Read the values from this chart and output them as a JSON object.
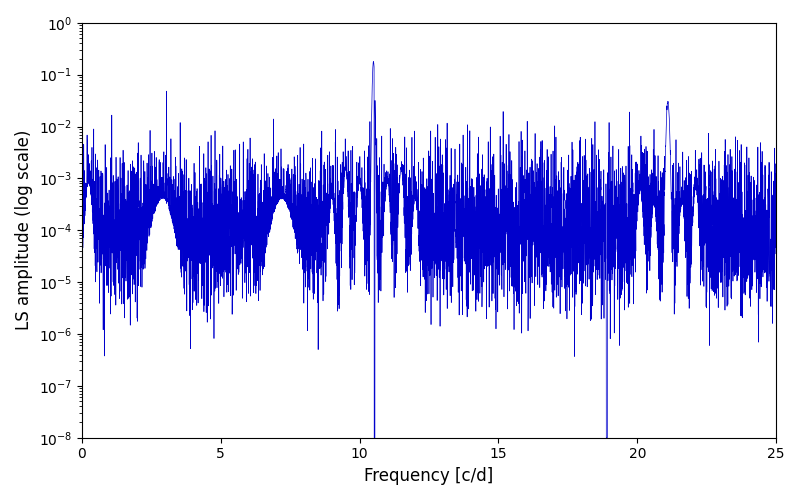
{
  "line_color": "#0000cc",
  "xlabel": "Frequency [c/d]",
  "ylabel": "LS amplitude (log scale)",
  "xlim": [
    0,
    25
  ],
  "ylim": [
    1e-08,
    1.0
  ],
  "xticks": [
    0,
    5,
    10,
    15,
    20,
    25
  ],
  "figsize": [
    8.0,
    5.0
  ],
  "dpi": 100,
  "main_peak_freq": 10.5,
  "main_peak_amp": 0.18,
  "secondary_peak_freq": 21.1,
  "secondary_peak_amp": 0.03,
  "noise_log_mean": -4.0,
  "noise_log_std": 0.75,
  "seed": 123,
  "n_points": 6000
}
